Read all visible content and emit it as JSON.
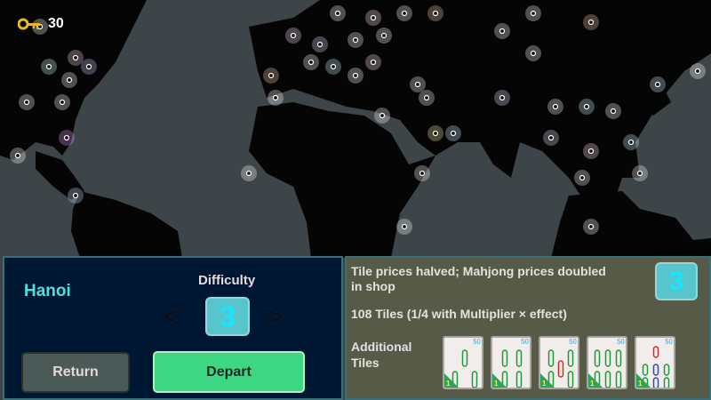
{
  "hud": {
    "key_icon": "key-icon",
    "key_count": "30",
    "key_color": "#e8b91e"
  },
  "map": {
    "ocean_color": "#3d4549",
    "land_color": "#050505"
  },
  "left_panel": {
    "city": "Hanoi",
    "difficulty_label": "Difficulty",
    "difficulty_value": "3",
    "prev_label": "<",
    "next_label": ">",
    "return_label": "Return",
    "depart_label": "Depart"
  },
  "right_panel": {
    "description": "Tile prices halved; Mahjong prices doubled in shop",
    "tile_count": "108 Tiles (1/4 with Multiplier × effect)",
    "difficulty_value": "3",
    "additional_label": "Additional Tiles",
    "tiles": [
      {
        "name": "3 bamboo",
        "badge": "50",
        "level": "1"
      },
      {
        "name": "4 bamboo",
        "badge": "50",
        "level": "1"
      },
      {
        "name": "5 bamboo",
        "badge": "50",
        "level": "1"
      },
      {
        "name": "6 bamboo",
        "badge": "50",
        "level": "1"
      },
      {
        "name": "8 bamboo",
        "badge": "50",
        "level": "1"
      }
    ]
  }
}
